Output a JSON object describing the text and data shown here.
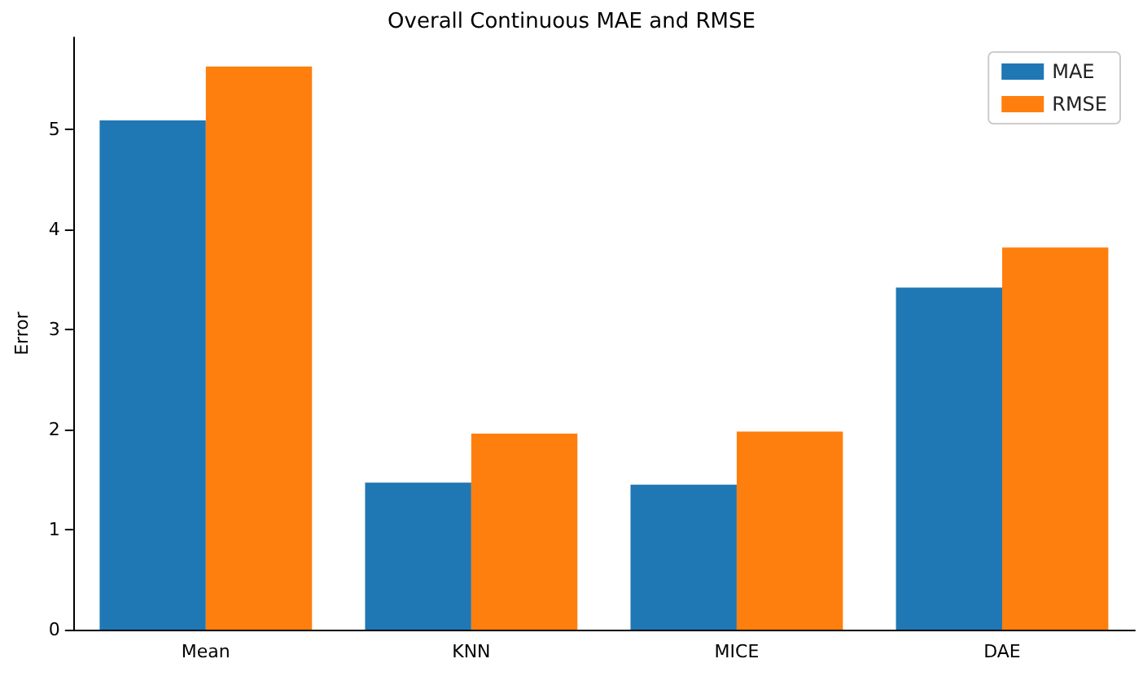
{
  "chart_data": {
    "type": "bar",
    "title": "Overall Continuous MAE and RMSE",
    "ylabel": "Error",
    "categories": [
      "Mean",
      "KNN",
      "MICE",
      "DAE"
    ],
    "series": [
      {
        "name": "MAE",
        "color": "#1f77b4",
        "values": [
          5.09,
          1.47,
          1.45,
          3.42
        ]
      },
      {
        "name": "RMSE",
        "color": "#ff7f0e",
        "values": [
          5.63,
          1.96,
          1.98,
          3.82
        ]
      }
    ],
    "ylim": [
      0,
      5.92
    ],
    "yticks": [
      0,
      1,
      2,
      3,
      4,
      5
    ],
    "grid": false,
    "legend": "top right"
  }
}
